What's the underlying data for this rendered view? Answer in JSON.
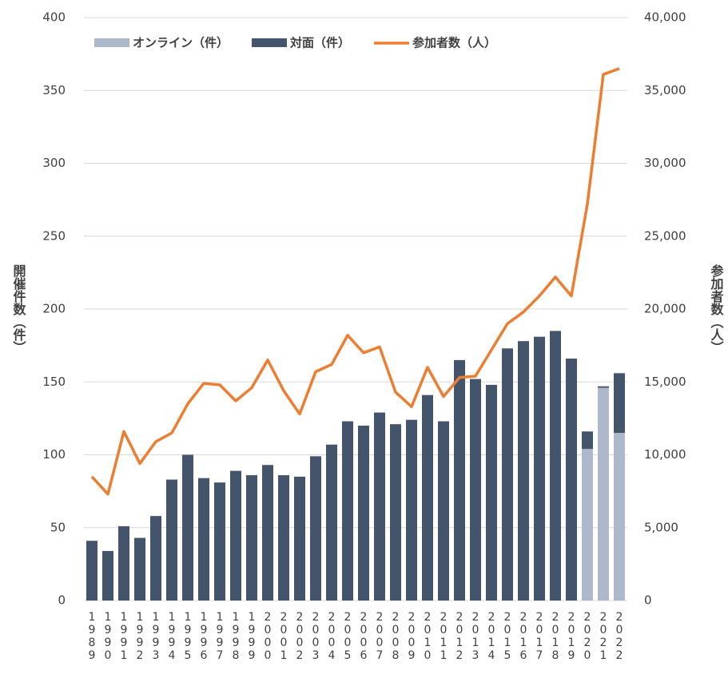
{
  "chart_data": {
    "type": "bar-line",
    "categories": [
      "1989",
      "1990",
      "1991",
      "1992",
      "1993",
      "1994",
      "1995",
      "1996",
      "1997",
      "1998",
      "1999",
      "2000",
      "2001",
      "2002",
      "2003",
      "2004",
      "2005",
      "2006",
      "2007",
      "2008",
      "2009",
      "2010",
      "2011",
      "2012",
      "2013",
      "2014",
      "2015",
      "2016",
      "2017",
      "2018",
      "2019",
      "2020",
      "2021",
      "2022"
    ],
    "series": [
      {
        "name": "オンライン（件）",
        "type": "bar",
        "color": "#adb9ca",
        "values": [
          null,
          null,
          null,
          null,
          null,
          null,
          null,
          null,
          null,
          null,
          null,
          null,
          null,
          null,
          null,
          null,
          null,
          null,
          null,
          null,
          null,
          null,
          null,
          null,
          null,
          null,
          null,
          null,
          null,
          null,
          null,
          104,
          146,
          115
        ]
      },
      {
        "name": "対面（件）",
        "type": "bar",
        "color": "#44546a",
        "values": [
          41,
          34,
          51,
          43,
          58,
          83,
          100,
          84,
          81,
          89,
          86,
          93,
          86,
          85,
          99,
          107,
          123,
          120,
          129,
          121,
          124,
          141,
          123,
          165,
          152,
          148,
          173,
          178,
          181,
          185,
          166,
          12,
          1,
          41
        ]
      },
      {
        "name": "参加者数（人）",
        "type": "line",
        "axis": "y2",
        "color": "#ed7d31",
        "values": [
          8500,
          7300,
          11600,
          9400,
          10900,
          11500,
          13500,
          14900,
          14800,
          13700,
          14600,
          16500,
          14400,
          12800,
          15700,
          16200,
          18200,
          17000,
          17400,
          14300,
          13300,
          16000,
          14000,
          15300,
          15400,
          17200,
          19000,
          19800,
          20900,
          22200,
          20900,
          27200,
          36100,
          36500
        ]
      }
    ],
    "y_label": "開催件数（件）",
    "y2_label": "参加者数（人）",
    "ylim": [
      0,
      400
    ],
    "yticks": [
      0,
      50,
      100,
      150,
      200,
      250,
      300,
      350,
      400
    ],
    "y2lim": [
      0,
      40000
    ],
    "y2ticks": [
      0,
      {
        "value": 5000,
        "label": "5,000"
      },
      {
        "value": 10000,
        "label": "10,000"
      },
      {
        "value": 15000,
        "label": "15,000"
      },
      {
        "value": 20000,
        "label": "20,000"
      },
      {
        "value": 25000,
        "label": "25,000"
      },
      {
        "value": 30000,
        "label": "30,000"
      },
      {
        "value": 35000,
        "label": "35,000"
      },
      {
        "value": 40000,
        "label": "40,000"
      }
    ],
    "grid": true,
    "legend": "top"
  }
}
